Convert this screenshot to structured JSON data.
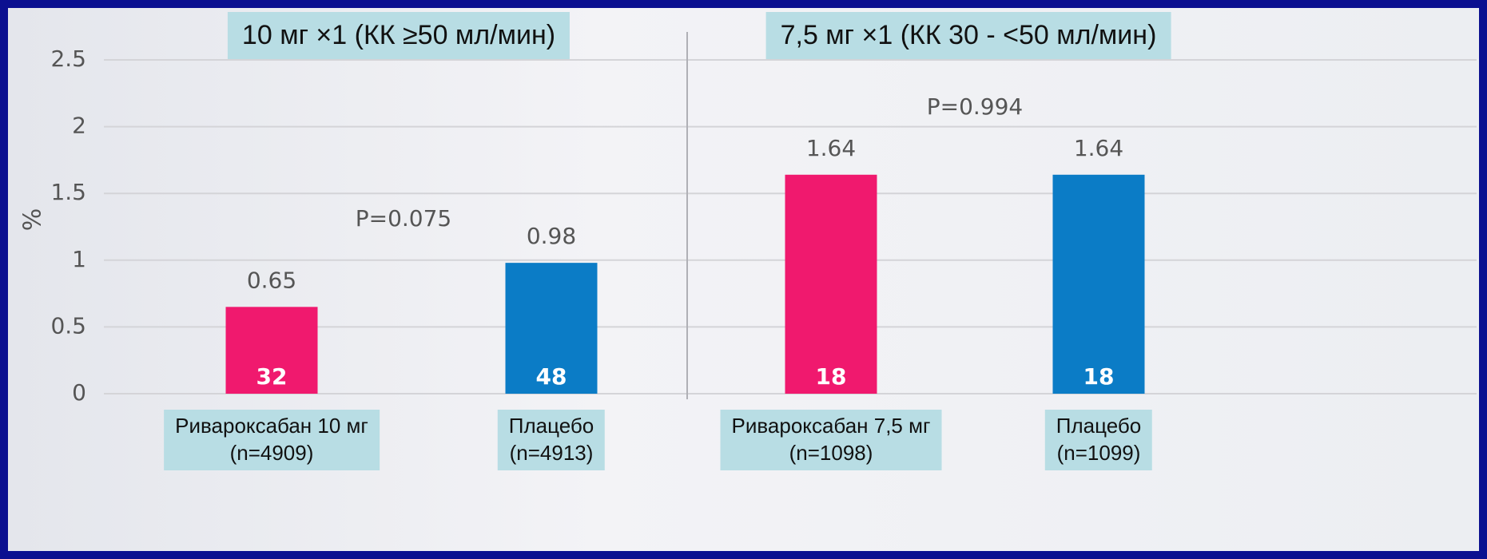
{
  "chart_data": {
    "type": "bar",
    "panel_titles": [
      "10 мг ×1 (КК ≥50 мл/мин)",
      "7,5 мг ×1 (КК 30 - <50 мл/мин)"
    ],
    "annotations": [
      "P=0.075",
      "P=0.994"
    ],
    "ylabel": "%",
    "categories": [
      "Ривароксабан 10 мг\n(n=4909)",
      "Плацебо\n(n=4913)",
      "Ривароксабан 7,5 мг\n(n=1098)",
      "Плацебо\n(n=1099)"
    ],
    "values": [
      0.65,
      0.98,
      1.64,
      1.64
    ],
    "bar_counts": [
      32,
      48,
      18,
      18
    ],
    "colors": [
      "#f0196e",
      "#0b7cc6",
      "#f0196e",
      "#0b7cc6"
    ],
    "ylim": [
      0,
      2.5
    ],
    "yticks": [
      0,
      0.5,
      1,
      1.5,
      2,
      2.5
    ],
    "grid": true
  }
}
